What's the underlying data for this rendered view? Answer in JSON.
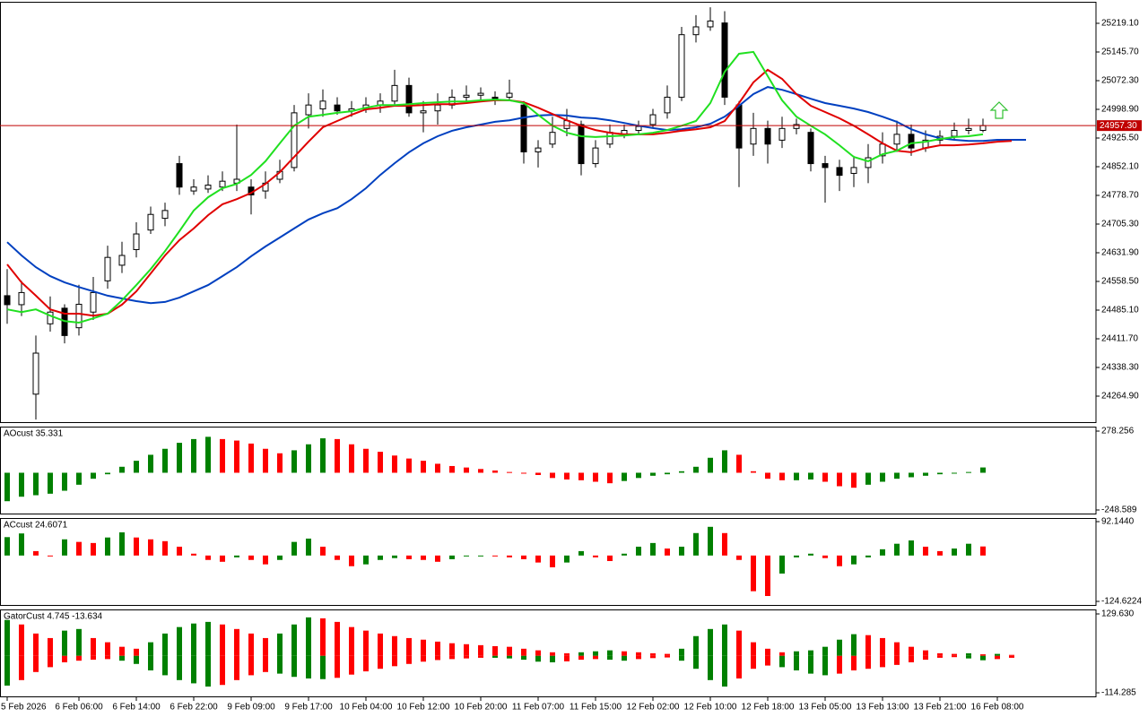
{
  "chart_data": [
    {
      "type": "candlestick",
      "categories": [
        "5 Feb 2026",
        null,
        null,
        null,
        null,
        "6 Feb 06:00",
        null,
        null,
        null,
        "6 Feb 14:00",
        null,
        null,
        null,
        "6 Feb 22:00",
        null,
        null,
        null,
        "9 Feb 09:00",
        null,
        null,
        null,
        "9 Feb 17:00",
        null,
        null,
        null,
        "10 Feb 04:00",
        null,
        null,
        null,
        "10 Feb 12:00",
        null,
        null,
        null,
        "10 Feb 20:00",
        null,
        null,
        null,
        "11 Feb 07:00",
        null,
        null,
        null,
        "11 Feb 15:00",
        null,
        null,
        null,
        "12 Feb 02:00",
        null,
        null,
        null,
        "12 Feb 10:00",
        null,
        null,
        null,
        "12 Feb 18:00",
        null,
        null,
        null,
        "13 Feb 05:00",
        null,
        null,
        null,
        "13 Feb 13:00",
        null,
        null,
        null,
        "13 Feb 21:00",
        null,
        null,
        null,
        "16 Feb 08:00",
        null,
        null
      ],
      "open": [
        24522,
        24499,
        24270,
        24450,
        24490,
        24440,
        24480,
        24560,
        24600,
        24640,
        24690,
        24720,
        24860,
        24790,
        24795,
        24800,
        24810,
        24800,
        24790,
        24820,
        24850,
        24985,
        25000,
        25010,
        24995,
        25000,
        25010,
        25020,
        25060,
        24990,
        24995,
        25010,
        25030,
        25035,
        25030,
        25030,
        25010,
        24890,
        24910,
        24950,
        24960,
        24860,
        24910,
        24935,
        24945,
        24960,
        24990,
        25030,
        25190,
        25210,
        25220,
        25010,
        24910,
        24950,
        24920,
        24950,
        24940,
        24860,
        24850,
        24835,
        24850,
        24880,
        24910,
        24935,
        24900,
        24920,
        24930,
        24945,
        24945,
        null,
        null,
        null
      ],
      "high": [
        24590,
        24560,
        24420,
        24520,
        24500,
        24550,
        24570,
        24650,
        24660,
        24710,
        24750,
        24760,
        24880,
        24820,
        24830,
        24840,
        24960,
        24820,
        24840,
        24870,
        25010,
        25040,
        25050,
        25030,
        25020,
        25030,
        25040,
        25100,
        25080,
        25020,
        25040,
        25050,
        25060,
        25055,
        25045,
        25075,
        25020,
        24920,
        24980,
        25000,
        24970,
        24920,
        24960,
        24960,
        24970,
        25000,
        25060,
        25210,
        25240,
        25260,
        25250,
        25020,
        24990,
        24970,
        24980,
        24975,
        24950,
        24880,
        24870,
        24880,
        24910,
        24940,
        24970,
        24960,
        24945,
        24945,
        24965,
        24975,
        24975,
        null,
        null,
        null
      ],
      "low": [
        24450,
        24470,
        24205,
        24430,
        24400,
        24420,
        24460,
        24540,
        24580,
        24620,
        24680,
        24700,
        24780,
        24780,
        24785,
        24790,
        24790,
        24730,
        24770,
        24810,
        24840,
        24950,
        24980,
        24985,
        24980,
        24990,
        24990,
        25010,
        24980,
        24940,
        24960,
        25000,
        25020,
        25020,
        25010,
        25020,
        24860,
        24850,
        24900,
        24930,
        24830,
        24850,
        24900,
        24925,
        24935,
        24950,
        24975,
        25020,
        25170,
        25200,
        25010,
        24800,
        24880,
        24860,
        24900,
        24935,
        24840,
        24760,
        24790,
        24800,
        24810,
        24860,
        24890,
        24880,
        24890,
        24910,
        24920,
        24935,
        24940,
        null,
        null,
        null
      ],
      "close": [
        24499,
        24530,
        24375,
        24480,
        24420,
        24500,
        24530,
        24620,
        24625,
        24680,
        24730,
        24740,
        24800,
        24800,
        24805,
        24815,
        24820,
        24780,
        24810,
        24840,
        24990,
        25010,
        25020,
        24995,
        25000,
        25010,
        25020,
        25060,
        24990,
        24995,
        25010,
        25030,
        25035,
        25040,
        25025,
        25040,
        24890,
        24900,
        24940,
        24970,
        24860,
        24900,
        24940,
        24945,
        24955,
        24985,
        25030,
        25190,
        25210,
        25225,
        25030,
        24900,
        24950,
        24910,
        24950,
        24960,
        24860,
        24850,
        24830,
        24850,
        24875,
        24910,
        24935,
        24900,
        24920,
        24930,
        24945,
        24950,
        24957.3,
        null,
        null,
        null
      ],
      "up_fill": "#ffffff",
      "down_fill": "#000000",
      "series": [
        {
          "color": "#0040c0",
          "values": [
            24659,
            24625,
            24595,
            24572,
            24556,
            24544,
            24533,
            24522,
            24515,
            24508,
            24503,
            24506,
            24517,
            24533,
            24549,
            24572,
            24595,
            24623,
            24648,
            24671,
            24694,
            24717,
            24733,
            24746,
            24769,
            24797,
            24831,
            24861,
            24889,
            24912,
            24930,
            24944,
            24953,
            24960,
            24967,
            24971,
            24978,
            24983,
            24985,
            24983,
            24978,
            24976,
            24971,
            24964,
            24957,
            24951,
            24946,
            24948,
            24953,
            24962,
            24980,
            25008,
            25038,
            25056,
            25049,
            25038,
            25026,
            25015,
            25008,
            25001,
            24992,
            24980,
            24967,
            24948,
            24935,
            24925,
            24921,
            24918,
            24918,
            24921,
            24921,
            24921
          ]
        },
        {
          "color": "#e00000",
          "values": [
            24602,
            24556,
            24522,
            24487,
            24476,
            24476,
            24471,
            24476,
            24499,
            24533,
            24579,
            24625,
            24664,
            24694,
            24728,
            24756,
            24769,
            24785,
            24808,
            24838,
            24877,
            24916,
            24953,
            24969,
            24985,
            24999,
            25003,
            25008,
            25008,
            25010,
            25012,
            25012,
            25015,
            25019,
            25022,
            25022,
            25017,
            25003,
            24987,
            24971,
            24957,
            24946,
            24939,
            24935,
            24935,
            24935,
            24939,
            24944,
            24948,
            24953,
            24969,
            25015,
            25068,
            25100,
            25077,
            25038,
            25008,
            24992,
            24976,
            24957,
            24935,
            24912,
            24893,
            24889,
            24900,
            24907,
            24907,
            24909,
            24912,
            24916,
            24918,
            null
          ]
        },
        {
          "color": "#20e020",
          "values": [
            24487,
            24480,
            24487,
            24471,
            24457,
            24453,
            24464,
            24476,
            24510,
            24549,
            24590,
            24636,
            24687,
            24740,
            24774,
            24797,
            24808,
            24831,
            24866,
            24912,
            24957,
            24980,
            24985,
            24990,
            24994,
            25003,
            25010,
            25010,
            25012,
            25015,
            25017,
            25019,
            25019,
            25022,
            25024,
            25022,
            25015,
            24985,
            24957,
            24939,
            24930,
            24928,
            24930,
            24932,
            24935,
            24939,
            24946,
            24957,
            24969,
            25015,
            25095,
            25141,
            25146,
            25084,
            25022,
            24980,
            24957,
            24935,
            24907,
            24877,
            24866,
            24884,
            24893,
            24912,
            24916,
            24923,
            24928,
            24930,
            24935,
            null,
            null,
            null
          ]
        }
      ],
      "price_line": {
        "value": 24957.3,
        "label": "24957.30",
        "color": "#c00000"
      },
      "ylim": [
        24196.1,
        25274.15
      ],
      "yticks": [
        {
          "value": 25219.1,
          "label": "25219.10"
        },
        {
          "value": 25145.7,
          "label": "25145.70"
        },
        {
          "value": 25072.3,
          "label": "25072.30"
        },
        {
          "value": 24998.9,
          "label": "24998.90"
        },
        {
          "value": 24925.5,
          "label": "24925.50"
        },
        {
          "value": 24852.1,
          "label": "24852.10"
        },
        {
          "value": 24778.7,
          "label": "24778.70"
        },
        {
          "value": 24705.3,
          "label": "24705.30"
        },
        {
          "value": 24631.9,
          "label": "24631.90"
        },
        {
          "value": 24558.5,
          "label": "24558.50"
        },
        {
          "value": 24485.1,
          "label": "24485.10"
        },
        {
          "value": 24411.7,
          "label": "24411.70"
        },
        {
          "value": 24338.3,
          "label": "24338.30"
        },
        {
          "value": 24264.9,
          "label": "24264.90"
        }
      ]
    },
    {
      "type": "bar",
      "title": "AOcust 35.331",
      "up_color": "#008000",
      "down_color": "#ff0000",
      "values": [
        -190,
        -160,
        -150,
        -140,
        -120,
        -80,
        -40,
        -10,
        40,
        80,
        120,
        160,
        200,
        225,
        240,
        225,
        215,
        195,
        160,
        130,
        150,
        190,
        230,
        225,
        190,
        160,
        140,
        115,
        95,
        80,
        60,
        45,
        35,
        25,
        15,
        5,
        -5,
        -15,
        -35,
        -45,
        -50,
        -60,
        -70,
        -55,
        -35,
        -20,
        -10,
        10,
        40,
        100,
        150,
        120,
        10,
        -40,
        -50,
        -50,
        -45,
        -60,
        -90,
        -100,
        -80,
        -60,
        -40,
        -30,
        -20,
        -10,
        -5,
        5,
        35.331,
        null,
        null,
        null
      ],
      "ylim": [
        -278.5,
        308.2
      ],
      "yticks": [
        278.256,
        -248.589
      ]
    },
    {
      "type": "bar",
      "title": "ACcust 24.6071",
      "up_color": "#008000",
      "down_color": "#ff0000",
      "values": [
        50,
        60,
        12,
        0,
        44,
        37,
        34,
        49,
        63,
        49,
        44,
        39,
        24,
        5,
        -12,
        -17,
        -5,
        -12,
        -24,
        -12,
        37,
        46,
        24,
        -12,
        -29,
        -24,
        -12,
        -7,
        -10,
        -12,
        -17,
        -10,
        -2,
        0,
        -2,
        -5,
        -10,
        -19,
        -32,
        -19,
        12,
        -5,
        -15,
        5,
        24,
        34,
        19,
        24,
        61,
        78,
        61,
        -12,
        -97,
        -110,
        -49,
        -5,
        5,
        -7,
        -29,
        -24,
        -5,
        17,
        32,
        41,
        24,
        12,
        19,
        32,
        24.6071,
        null,
        null,
        null
      ],
      "ylim": [
        -136.8,
        101.886
      ],
      "yticks": [
        {
          "value": 92.144,
          "label": "92.1440"
        },
        -124.6224
      ]
    },
    {
      "type": "gator",
      "title": "GatorCust 4.745 -13.634",
      "up_color": "#008000",
      "down_color": "#ff0000",
      "upper": [
        111,
        97,
        69,
        55,
        78,
        83,
        55,
        42,
        28,
        22,
        42,
        69,
        89,
        100,
        105,
        97,
        83,
        69,
        55,
        69,
        97,
        119,
        116,
        105,
        89,
        78,
        69,
        61,
        55,
        50,
        44,
        39,
        36,
        33,
        30,
        28,
        22,
        17,
        11,
        8,
        11,
        14,
        17,
        14,
        11,
        8,
        6,
        22,
        61,
        83,
        97,
        78,
        42,
        22,
        11,
        14,
        17,
        28,
        50,
        67,
        64,
        55,
        42,
        28,
        17,
        8,
        6,
        8,
        4.745,
        6,
        3,
        null
      ],
      "lower": [
        -92,
        -75,
        -50,
        -35,
        -20,
        -15,
        -12,
        -10,
        -15,
        -25,
        -45,
        -60,
        -75,
        -85,
        -95,
        -90,
        -75,
        -60,
        -50,
        -55,
        -65,
        -70,
        -72,
        -68,
        -58,
        -48,
        -40,
        -32,
        -25,
        -18,
        -13,
        -10,
        -8,
        -6,
        -6,
        -8,
        -12,
        -18,
        -20,
        -17,
        -12,
        -10,
        -12,
        -15,
        -10,
        -7,
        -5,
        -15,
        -40,
        -75,
        -95,
        -70,
        -40,
        -30,
        -35,
        -45,
        -55,
        -60,
        -55,
        -45,
        -40,
        -35,
        -28,
        -20,
        -12,
        -6,
        -4,
        -8,
        -13.634,
        -10,
        -6,
        null
      ],
      "ylim": [
        -128.15,
        143.49
      ],
      "yticks": [
        {
          "value": 129.63,
          "label": "129.630"
        },
        -114.285
      ]
    }
  ]
}
